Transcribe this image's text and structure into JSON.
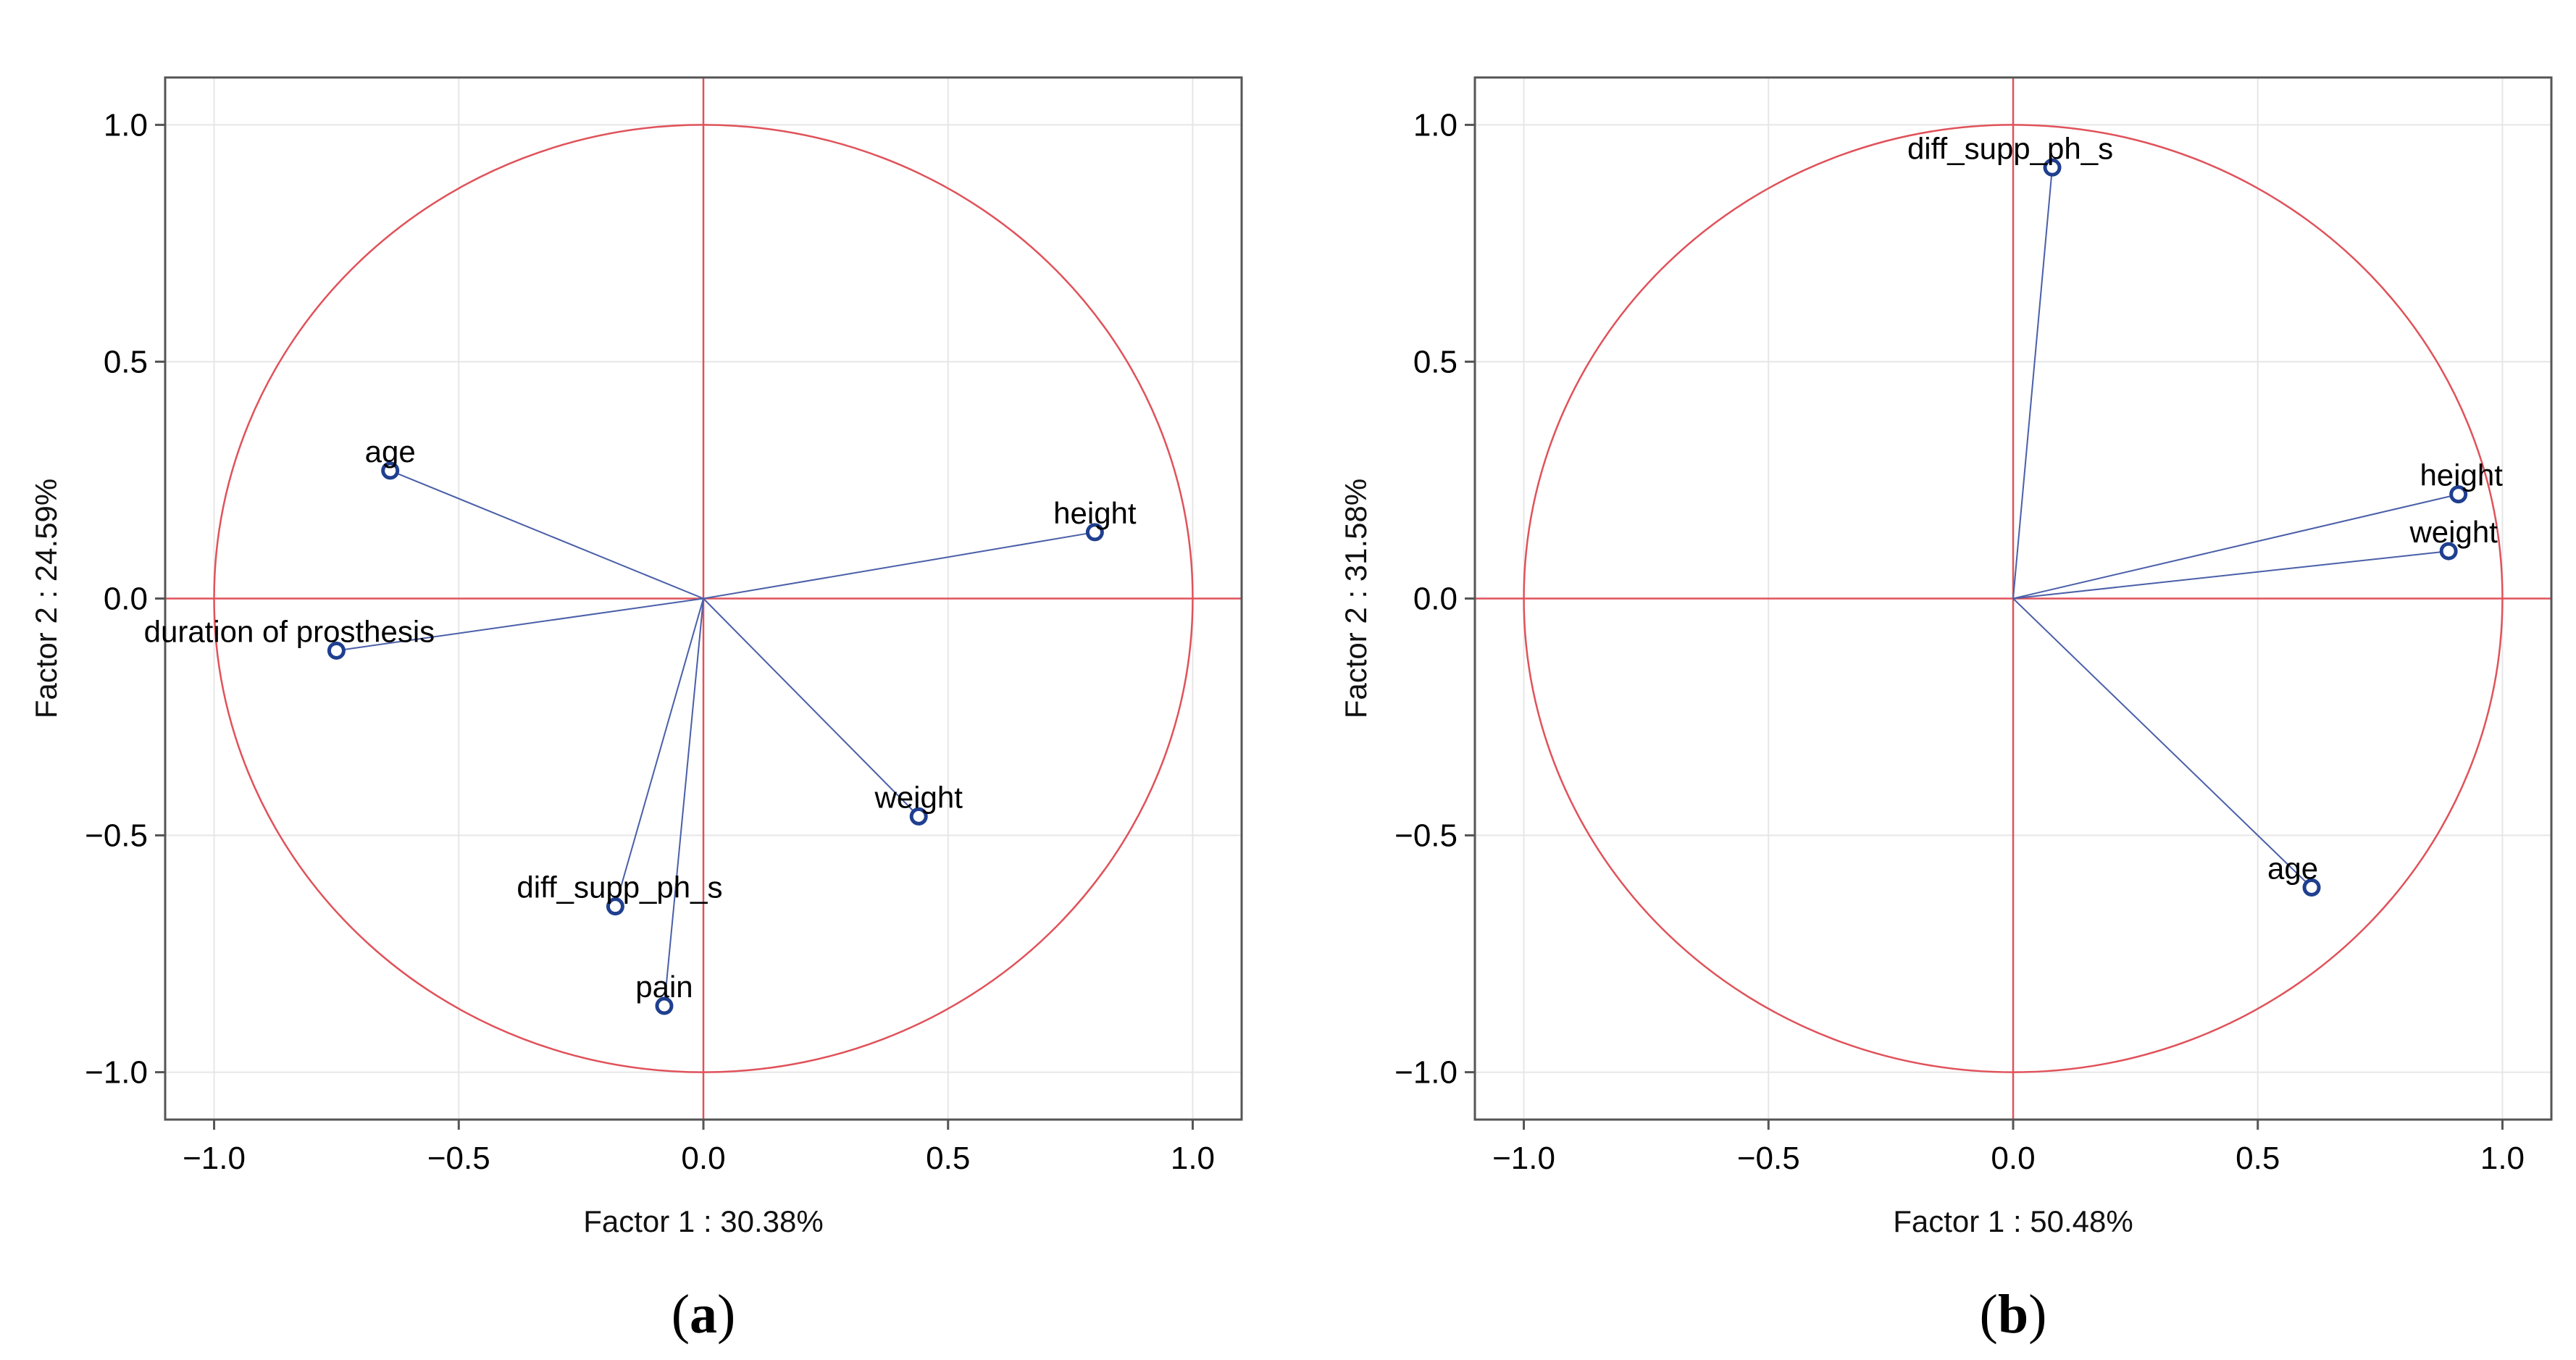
{
  "chart_data": [
    {
      "type": "scatter",
      "subtype": "pca-correlation-circle",
      "caption_letter": "a",
      "xlabel": "Factor 1 : 30.38%",
      "ylabel": "Factor 2 : 24.59%",
      "xlim": [
        -1.1,
        1.1
      ],
      "ylim": [
        -1.1,
        1.1
      ],
      "xticks": [
        -1.0,
        -0.5,
        0.0,
        0.5,
        1.0
      ],
      "yticks": [
        -1.0,
        -0.5,
        0.0,
        0.5,
        1.0
      ],
      "xtick_labels": [
        "−1.0",
        "−0.5",
        "0.0",
        "0.5",
        "1.0"
      ],
      "ytick_labels": [
        "−1.0",
        "−0.5",
        "0.0",
        "0.5",
        "1.0"
      ],
      "grid": true,
      "points": [
        {
          "label": "age",
          "x": -0.64,
          "y": 0.27
        },
        {
          "label": "height",
          "x": 0.8,
          "y": 0.14
        },
        {
          "label": "duration of prosthesis",
          "x": -0.75,
          "y": -0.11
        },
        {
          "label": "weight",
          "x": 0.44,
          "y": -0.46
        },
        {
          "label": "diff_supp_ph_s",
          "x": -0.18,
          "y": -0.65
        },
        {
          "label": "pain",
          "x": -0.08,
          "y": -0.86
        }
      ]
    },
    {
      "type": "scatter",
      "subtype": "pca-correlation-circle",
      "caption_letter": "b",
      "xlabel": "Factor 1 : 50.48%",
      "ylabel": "Factor 2 : 31.58%",
      "xlim": [
        -1.1,
        1.1
      ],
      "ylim": [
        -1.1,
        1.1
      ],
      "xticks": [
        -1.0,
        -0.5,
        0.0,
        0.5,
        1.0
      ],
      "yticks": [
        -1.0,
        -0.5,
        0.0,
        0.5,
        1.0
      ],
      "xtick_labels": [
        "−1.0",
        "−0.5",
        "0.0",
        "0.5",
        "1.0"
      ],
      "ytick_labels": [
        "−1.0",
        "−0.5",
        "0.0",
        "0.5",
        "1.0"
      ],
      "grid": true,
      "points": [
        {
          "label": "diff_supp_ph_s",
          "x": 0.08,
          "y": 0.91
        },
        {
          "label": "height",
          "x": 0.91,
          "y": 0.22
        },
        {
          "label": "weight",
          "x": 0.89,
          "y": 0.1
        },
        {
          "label": "age",
          "x": 0.61,
          "y": -0.61
        }
      ]
    }
  ],
  "colors": {
    "circle": "#e0525a",
    "axis_cross": "#e0525a",
    "vector": "#4a5fa8",
    "marker": "#1f3f8f",
    "grid": "#e6e6e6",
    "frame": "#555555"
  }
}
